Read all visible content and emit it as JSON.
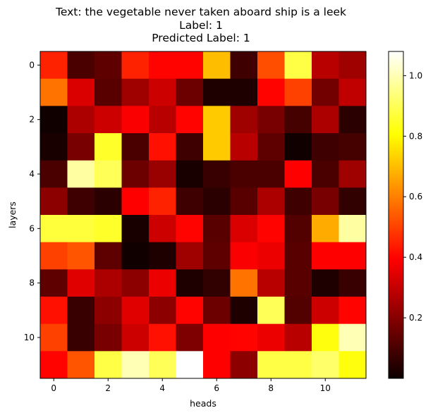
{
  "chart_data": {
    "type": "heatmap",
    "title": [
      "Text: the vegetable never taken aboard ship is a leek",
      "Label: 1",
      "Predicted Label: 1"
    ],
    "xlabel": "heads",
    "ylabel": "layers",
    "colormap": "hot",
    "color_range": [
      0.0,
      1.08
    ],
    "colorbar_ticks": [
      0.2,
      0.4,
      0.6,
      0.8,
      1.0
    ],
    "colorbar_tick_labels": [
      "0.2",
      "0.4",
      "0.6",
      "0.8",
      "1.0"
    ],
    "x_ticks": [
      0,
      2,
      4,
      6,
      8,
      10
    ],
    "x_tick_labels": [
      "0",
      "2",
      "4",
      "6",
      "8",
      "10"
    ],
    "y_ticks": [
      0,
      2,
      4,
      6,
      8,
      10
    ],
    "y_tick_labels": [
      "0",
      "2",
      "4",
      "6",
      "8",
      "10"
    ],
    "rows": 12,
    "cols": 12,
    "values": [
      [
        0.45,
        0.1,
        0.13,
        0.45,
        0.4,
        0.4,
        0.7,
        0.08,
        0.52,
        0.88,
        0.27,
        0.23
      ],
      [
        0.58,
        0.32,
        0.12,
        0.23,
        0.3,
        0.15,
        0.03,
        0.03,
        0.4,
        0.5,
        0.16,
        0.28
      ],
      [
        0.01,
        0.25,
        0.3,
        0.37,
        0.27,
        0.4,
        0.72,
        0.23,
        0.17,
        0.09,
        0.25,
        0.05
      ],
      [
        0.02,
        0.17,
        0.85,
        0.1,
        0.42,
        0.08,
        0.72,
        0.27,
        0.13,
        0.01,
        0.08,
        0.09
      ],
      [
        0.1,
        0.98,
        0.9,
        0.15,
        0.22,
        0.02,
        0.07,
        0.1,
        0.1,
        0.38,
        0.1,
        0.23
      ],
      [
        0.2,
        0.08,
        0.05,
        0.38,
        0.45,
        0.08,
        0.05,
        0.12,
        0.25,
        0.08,
        0.17,
        0.06
      ],
      [
        0.87,
        0.87,
        0.85,
        0.02,
        0.3,
        0.4,
        0.12,
        0.32,
        0.4,
        0.11,
        0.67,
        0.98
      ],
      [
        0.5,
        0.53,
        0.13,
        0.01,
        0.03,
        0.23,
        0.13,
        0.37,
        0.35,
        0.12,
        0.38,
        0.38
      ],
      [
        0.13,
        0.33,
        0.25,
        0.2,
        0.35,
        0.03,
        0.06,
        0.58,
        0.27,
        0.12,
        0.03,
        0.07
      ],
      [
        0.42,
        0.07,
        0.2,
        0.33,
        0.2,
        0.4,
        0.15,
        0.03,
        0.9,
        0.11,
        0.3,
        0.4
      ],
      [
        0.5,
        0.07,
        0.17,
        0.3,
        0.42,
        0.18,
        0.38,
        0.4,
        0.35,
        0.27,
        0.82,
        1.0
      ],
      [
        0.4,
        0.53,
        0.88,
        1.0,
        0.9,
        1.08,
        0.38,
        0.2,
        0.88,
        0.88,
        0.92,
        0.82
      ]
    ]
  }
}
